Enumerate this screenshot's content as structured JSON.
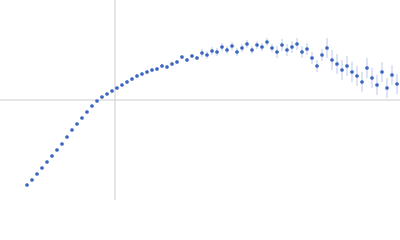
{
  "chart_data": {
    "type": "scatter",
    "color": "#3a65c0",
    "error_color": "#a9bde6",
    "ref_color": "#cccccc",
    "xlim": [
      -1.15,
      2.85
    ],
    "ylim": [
      -1,
      1
    ],
    "xref": 0,
    "yref": 0,
    "x": [
      -0.88,
      -0.83,
      -0.78,
      -0.73,
      -0.68,
      -0.63,
      -0.58,
      -0.53,
      -0.48,
      -0.43,
      -0.38,
      -0.33,
      -0.28,
      -0.23,
      -0.18,
      -0.13,
      -0.08,
      -0.03,
      0.02,
      0.07,
      0.12,
      0.17,
      0.22,
      0.27,
      0.32,
      0.37,
      0.42,
      0.47,
      0.52,
      0.57,
      0.62,
      0.67,
      0.72,
      0.77,
      0.82,
      0.87,
      0.92,
      0.97,
      1.02,
      1.07,
      1.12,
      1.17,
      1.22,
      1.27,
      1.32,
      1.37,
      1.42,
      1.47,
      1.52,
      1.57,
      1.62,
      1.67,
      1.72,
      1.77,
      1.82,
      1.87,
      1.92,
      1.97,
      2.02,
      2.07,
      2.12,
      2.17,
      2.22,
      2.27,
      2.32,
      2.37,
      2.42,
      2.47,
      2.52,
      2.57,
      2.62,
      2.67,
      2.72,
      2.77,
      2.82
    ],
    "values": [
      -0.85,
      -0.8,
      -0.74,
      -0.68,
      -0.62,
      -0.56,
      -0.5,
      -0.44,
      -0.37,
      -0.3,
      -0.24,
      -0.18,
      -0.12,
      -0.06,
      -0.01,
      0.03,
      0.06,
      0.09,
      0.12,
      0.15,
      0.18,
      0.21,
      0.24,
      0.26,
      0.28,
      0.3,
      0.31,
      0.34,
      0.33,
      0.36,
      0.38,
      0.43,
      0.4,
      0.44,
      0.42,
      0.47,
      0.45,
      0.49,
      0.48,
      0.53,
      0.5,
      0.54,
      0.48,
      0.52,
      0.56,
      0.5,
      0.55,
      0.53,
      0.58,
      0.52,
      0.48,
      0.55,
      0.5,
      0.53,
      0.56,
      0.48,
      0.51,
      0.42,
      0.34,
      0.45,
      0.52,
      0.4,
      0.36,
      0.3,
      0.34,
      0.28,
      0.24,
      0.18,
      0.32,
      0.22,
      0.15,
      0.28,
      0.12,
      0.25,
      0.16
    ],
    "errors": [
      0.01,
      0.01,
      0.01,
      0.01,
      0.01,
      0.01,
      0.01,
      0.01,
      0.01,
      0.01,
      0.01,
      0.01,
      0.01,
      0.01,
      0.01,
      0.01,
      0.01,
      0.01,
      0.01,
      0.01,
      0.02,
      0.02,
      0.02,
      0.02,
      0.02,
      0.02,
      0.02,
      0.02,
      0.02,
      0.02,
      0.02,
      0.02,
      0.02,
      0.02,
      0.02,
      0.04,
      0.04,
      0.04,
      0.04,
      0.04,
      0.04,
      0.04,
      0.04,
      0.04,
      0.04,
      0.04,
      0.04,
      0.04,
      0.04,
      0.04,
      0.06,
      0.06,
      0.06,
      0.06,
      0.06,
      0.06,
      0.06,
      0.06,
      0.06,
      0.06,
      0.1,
      0.1,
      0.1,
      0.1,
      0.1,
      0.1,
      0.1,
      0.1,
      0.1,
      0.1,
      0.1,
      0.1,
      0.1,
      0.1,
      0.1
    ]
  }
}
